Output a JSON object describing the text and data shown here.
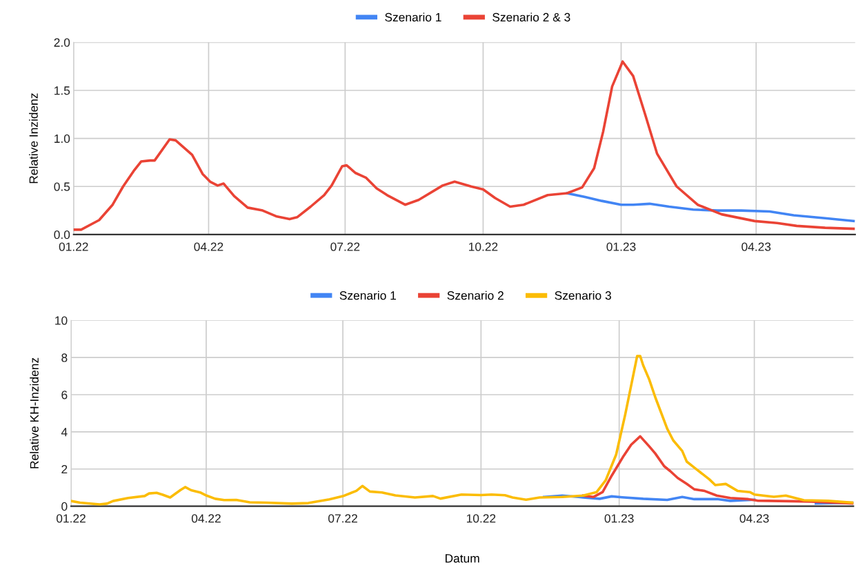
{
  "chart_data": [
    {
      "type": "line",
      "ylabel": "Relative Inzidenz",
      "legend": "top",
      "grid": true,
      "marker": "none",
      "line_style": "solid",
      "xlim": [
        "2022-01-01",
        "2023-06-06"
      ],
      "ylim": [
        0,
        2
      ],
      "xticks": [
        {
          "value": "2022-01-01",
          "label": "01.22"
        },
        {
          "value": "2022-04-01",
          "label": "04.22"
        },
        {
          "value": "2022-07-01",
          "label": "07.22"
        },
        {
          "value": "2022-10-01",
          "label": "10.22"
        },
        {
          "value": "2023-01-01",
          "label": "01.23"
        },
        {
          "value": "2023-04-01",
          "label": "04.23"
        }
      ],
      "yticks": [
        {
          "value": 0,
          "label": "0.0"
        },
        {
          "value": 0.5,
          "label": "0.5"
        },
        {
          "value": 1,
          "label": "1.0"
        },
        {
          "value": 1.5,
          "label": "1.5"
        },
        {
          "value": 2,
          "label": "2.0"
        }
      ],
      "series": [
        {
          "name": "Szenario 1",
          "color": "#4285f4",
          "x": [
            "2022-11-26",
            "2022-12-08",
            "2022-12-19",
            "2023-01-01",
            "2023-01-09",
            "2023-01-20",
            "2023-02-02",
            "2023-02-18",
            "2023-03-06",
            "2023-03-22",
            "2023-04-10",
            "2023-04-26",
            "2023-05-17",
            "2023-06-05"
          ],
          "values": [
            0.43,
            0.39,
            0.35,
            0.31,
            0.31,
            0.32,
            0.29,
            0.26,
            0.25,
            0.25,
            0.24,
            0.2,
            0.17,
            0.14
          ]
        },
        {
          "name": "Szenario 2 & 3",
          "color": "#ea4335",
          "x": [
            "2022-01-01",
            "2022-01-06",
            "2022-01-18",
            "2022-01-27",
            "2022-02-03",
            "2022-02-10",
            "2022-02-15",
            "2022-02-21",
            "2022-02-24",
            "2022-03-06",
            "2022-03-10",
            "2022-03-21",
            "2022-03-28",
            "2022-04-02",
            "2022-04-07",
            "2022-04-11",
            "2022-04-18",
            "2022-04-27",
            "2022-05-07",
            "2022-05-16",
            "2022-05-25",
            "2022-05-30",
            "2022-06-08",
            "2022-06-17",
            "2022-06-22",
            "2022-06-29",
            "2022-07-02",
            "2022-07-08",
            "2022-07-15",
            "2022-07-22",
            "2022-07-29",
            "2022-08-10",
            "2022-08-19",
            "2022-09-04",
            "2022-09-12",
            "2022-09-23",
            "2022-10-01",
            "2022-10-09",
            "2022-10-19",
            "2022-10-28",
            "2022-11-13",
            "2022-11-26",
            "2022-12-06",
            "2022-12-14",
            "2022-12-20",
            "2022-12-26",
            "2023-01-02",
            "2023-01-09",
            "2023-01-17",
            "2023-01-25",
            "2023-02-07",
            "2023-02-21",
            "2023-03-09",
            "2023-03-31",
            "2023-04-15",
            "2023-04-28",
            "2023-05-17",
            "2023-06-05"
          ],
          "values": [
            0.05,
            0.05,
            0.15,
            0.31,
            0.5,
            0.66,
            0.76,
            0.77,
            0.77,
            0.99,
            0.98,
            0.83,
            0.63,
            0.55,
            0.51,
            0.53,
            0.4,
            0.28,
            0.25,
            0.19,
            0.16,
            0.18,
            0.29,
            0.41,
            0.51,
            0.71,
            0.72,
            0.64,
            0.59,
            0.48,
            0.41,
            0.31,
            0.36,
            0.51,
            0.55,
            0.5,
            0.47,
            0.38,
            0.29,
            0.31,
            0.41,
            0.43,
            0.49,
            0.69,
            1.07,
            1.54,
            1.8,
            1.65,
            1.25,
            0.84,
            0.5,
            0.31,
            0.21,
            0.14,
            0.12,
            0.09,
            0.07,
            0.06
          ]
        }
      ]
    },
    {
      "type": "line",
      "ylabel": "Relative KH-Inzidenz",
      "xlabel": "Datum",
      "legend": "top",
      "grid": true,
      "marker": "none",
      "line_style": "solid",
      "xlim": [
        "2022-01-01",
        "2023-06-06"
      ],
      "ylim": [
        0,
        10
      ],
      "xticks": [
        {
          "value": "2022-01-01",
          "label": "01.22"
        },
        {
          "value": "2022-04-01",
          "label": "04.22"
        },
        {
          "value": "2022-07-01",
          "label": "07.22"
        },
        {
          "value": "2022-10-01",
          "label": "10.22"
        },
        {
          "value": "2023-01-01",
          "label": "01.23"
        },
        {
          "value": "2023-04-01",
          "label": "04.23"
        }
      ],
      "yticks": [
        0,
        2,
        4,
        6,
        8,
        10
      ],
      "series": [
        {
          "name": "Szenario 1",
          "color": "#4285f4",
          "x": [
            "2022-11-12",
            "2022-11-24",
            "2022-12-05",
            "2022-12-08",
            "2022-12-19",
            "2022-12-27",
            "2023-01-03",
            "2023-01-17",
            "2023-02-02",
            "2023-02-12",
            "2023-02-20",
            "2023-03-08",
            "2023-03-16",
            "2023-04-01",
            "2023-04-22",
            "2023-05-12",
            "2023-06-06"
          ],
          "values": [
            0.5,
            0.57,
            0.5,
            0.47,
            0.4,
            0.53,
            0.48,
            0.4,
            0.34,
            0.5,
            0.38,
            0.38,
            0.29,
            0.35,
            null,
            0.15,
            0.19
          ]
        },
        {
          "name": "Szenario 2",
          "color": "#ea4335",
          "x": [
            "2022-12-08",
            "2022-12-15",
            "2022-12-21",
            "2022-12-27",
            "2023-01-04",
            "2023-01-09",
            "2023-01-15",
            "2023-01-21",
            "2023-01-25",
            "2023-01-31",
            "2023-02-04",
            "2023-02-09",
            "2023-02-15",
            "2023-02-20",
            "2023-02-27",
            "2023-03-07",
            "2023-03-16",
            "2023-03-28",
            "2023-04-03",
            "2023-05-09",
            "2023-06-06"
          ],
          "values": [
            0.57,
            0.5,
            0.76,
            1.64,
            2.71,
            3.31,
            3.76,
            3.22,
            2.84,
            2.15,
            1.89,
            1.52,
            1.2,
            0.91,
            0.82,
            0.57,
            0.44,
            0.38,
            0.3,
            0.25,
            0.15
          ]
        },
        {
          "name": "Szenario 3",
          "color": "#fbbc04",
          "x": [
            "2022-01-01",
            "2022-01-07",
            "2022-01-20",
            "2022-01-25",
            "2022-01-29",
            "2022-02-08",
            "2022-02-19",
            "2022-02-22",
            "2022-02-27",
            "2022-03-03",
            "2022-03-08",
            "2022-03-15",
            "2022-03-18",
            "2022-03-22",
            "2022-03-28",
            "2022-04-01",
            "2022-04-07",
            "2022-04-13",
            "2022-04-21",
            "2022-04-30",
            "2022-05-11",
            "2022-05-28",
            "2022-06-08",
            "2022-06-22",
            "2022-07-01",
            "2022-07-10",
            "2022-07-14",
            "2022-07-19",
            "2022-07-27",
            "2022-08-05",
            "2022-08-18",
            "2022-08-30",
            "2022-09-04",
            "2022-09-18",
            "2022-10-01",
            "2022-10-08",
            "2022-10-17",
            "2022-10-22",
            "2022-10-31",
            "2022-11-09",
            "2022-11-24",
            "2022-12-08",
            "2022-12-17",
            "2022-12-23",
            "2022-12-30",
            "2023-01-05",
            "2023-01-13",
            "2023-01-15",
            "2023-01-17",
            "2023-01-21",
            "2023-01-25",
            "2023-02-02",
            "2023-02-06",
            "2023-02-12",
            "2023-02-15",
            "2023-02-20",
            "2023-03-02",
            "2023-03-06",
            "2023-03-13",
            "2023-03-21",
            "2023-03-29",
            "2023-04-01",
            "2023-04-14",
            "2023-04-22",
            "2023-05-04",
            "2023-05-20",
            "2023-06-06"
          ],
          "values": [
            0.28,
            0.19,
            0.1,
            0.14,
            0.28,
            0.44,
            0.55,
            0.69,
            0.72,
            0.62,
            0.47,
            0.88,
            1.03,
            0.86,
            0.74,
            0.58,
            0.4,
            0.33,
            0.34,
            0.21,
            0.19,
            0.14,
            0.17,
            0.37,
            0.54,
            0.83,
            1.09,
            0.79,
            0.74,
            0.58,
            0.47,
            0.55,
            0.41,
            0.63,
            0.6,
            0.63,
            0.59,
            0.47,
            0.35,
            0.47,
            0.5,
            0.57,
            0.76,
            1.39,
            2.78,
            4.92,
            8.08,
            8.08,
            7.58,
            6.82,
            5.87,
            4.17,
            3.54,
            2.97,
            2.4,
            2.08,
            1.45,
            1.14,
            1.2,
            0.82,
            0.76,
            0.63,
            0.51,
            0.57,
            0.32,
            0.29,
            0.19
          ]
        }
      ]
    }
  ]
}
